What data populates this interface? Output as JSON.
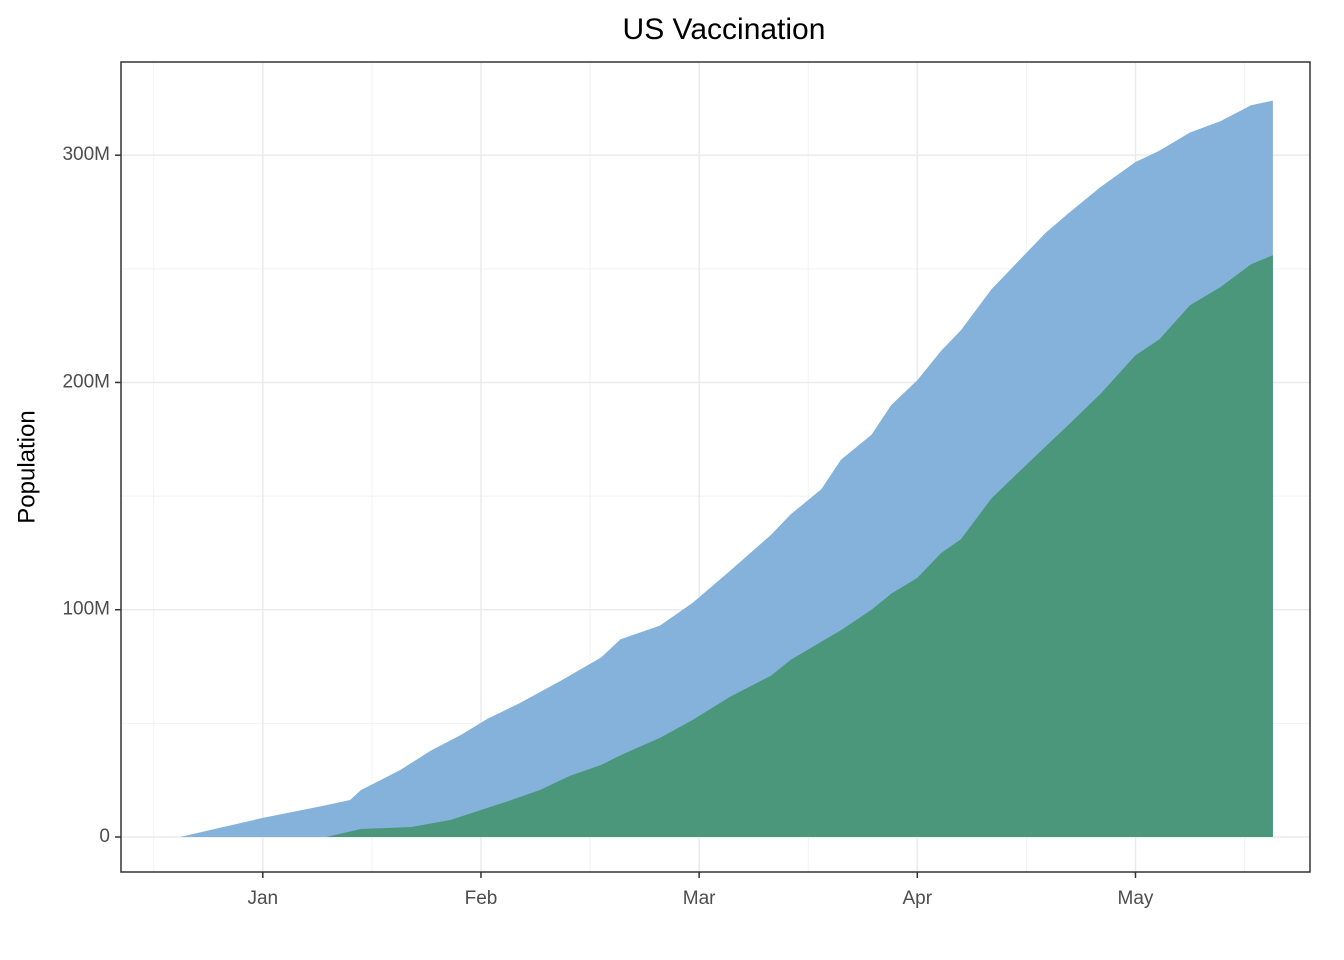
{
  "chart_data": {
    "type": "area",
    "title": "US Vaccination",
    "y_label": "Population",
    "series": [
      {
        "color": "#84b2da",
        "x": [
          0.62,
          1.0,
          1.27,
          1.4,
          1.45,
          1.63,
          1.77,
          1.91,
          2.03,
          2.18,
          2.37,
          2.55,
          2.64,
          2.82,
          2.97,
          3.14,
          3.33,
          3.42,
          3.56,
          3.65,
          3.79,
          3.88,
          4.0,
          4.11,
          4.2,
          4.34,
          4.47,
          4.59,
          4.7,
          4.84,
          5.0,
          5.11,
          5.25,
          5.39,
          5.53,
          5.63
        ],
        "values": [
          0,
          8400000,
          13600000,
          16300000,
          20700000,
          29500000,
          38000000,
          45000000,
          52000000,
          59000000,
          69000000,
          79000000,
          87000000,
          93000000,
          103000000,
          117000000,
          133000000,
          142000000,
          153000000,
          166000000,
          177000000,
          190000000,
          201000000,
          214000000,
          223000000,
          241000000,
          254000000,
          266000000,
          275000000,
          286000000,
          297000000,
          302000000,
          310000000,
          315000000,
          322000000,
          324000000
        ]
      },
      {
        "color": "#4a977c",
        "x": [
          1.29,
          1.45,
          1.68,
          1.86,
          2.03,
          2.14,
          2.27,
          2.41,
          2.55,
          2.64,
          2.82,
          2.97,
          3.14,
          3.33,
          3.42,
          3.65,
          3.79,
          3.88,
          4.0,
          4.11,
          4.2,
          4.34,
          4.47,
          4.59,
          4.7,
          4.84,
          5.0,
          5.11,
          5.25,
          5.39,
          5.53,
          5.63
        ],
        "values": [
          0,
          3500000,
          4400000,
          7500000,
          12800000,
          16300000,
          20700000,
          27000000,
          31700000,
          36000000,
          43600000,
          51500000,
          61600000,
          71000000,
          78000000,
          91000000,
          100000000,
          107000000,
          114000000,
          125000000,
          131000000,
          149000000,
          161000000,
          172000000,
          182000000,
          195000000,
          212000000,
          219000000,
          234000000,
          242000000,
          252000000,
          256000000
        ]
      }
    ],
    "xlim": [
      0.35,
      5.8
    ],
    "xticks": [
      {
        "value": 1,
        "label": "Jan"
      },
      {
        "value": 2,
        "label": "Feb"
      },
      {
        "value": 3,
        "label": "Mar"
      },
      {
        "value": 4,
        "label": "Apr"
      },
      {
        "value": 5,
        "label": "May"
      }
    ],
    "xminor": [
      0.5,
      1.5,
      2.5,
      3.5,
      4.5,
      5.5
    ],
    "ylim": [
      -15400000,
      341000000
    ],
    "yticks": [
      0,
      {
        "value": 100000000,
        "label": "100M"
      },
      {
        "value": 200000000,
        "label": "200M"
      },
      {
        "value": 300000000,
        "label": "300M"
      }
    ],
    "yminor": [
      50000000,
      150000000,
      250000000
    ],
    "grid": true
  }
}
